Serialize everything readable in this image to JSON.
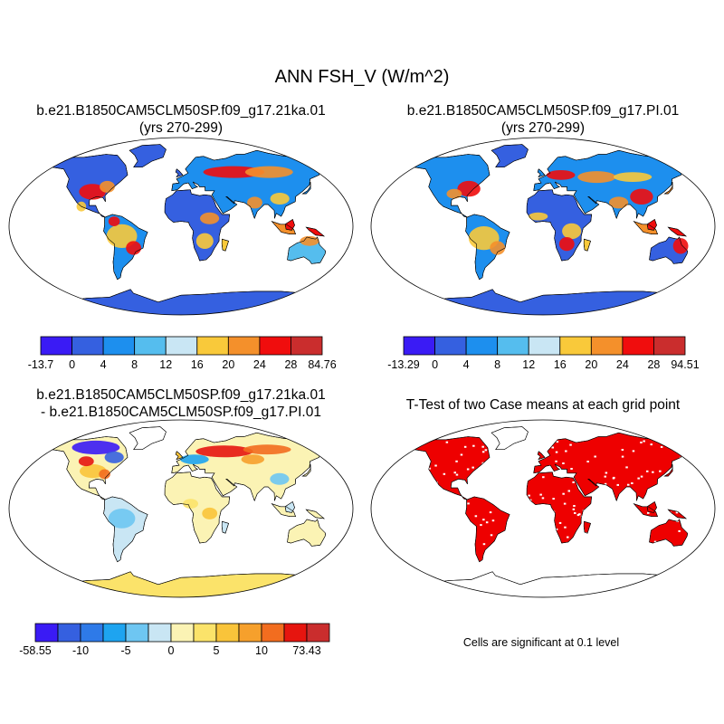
{
  "title": "ANN FSH_V (W/m^2)",
  "panels": [
    {
      "id": "case1",
      "title_line1": "b.e21.B1850CAM5CLM50SP.f09_g17.21ka.01",
      "title_line2": "(yrs 270-299)"
    },
    {
      "id": "case2",
      "title_line1": "b.e21.B1850CAM5CLM50SP.f09_g17.PI.01",
      "title_line2": "(yrs 270-299)"
    },
    {
      "id": "diff",
      "title_line1": "b.e21.B1850CAM5CLM50SP.f09_g17.21ka.01",
      "title_line2": "- b.e21.B1850CAM5CLM50SP.f09_g17.PI.01"
    },
    {
      "id": "ttest",
      "title_line1": "T-Test of two Case means at each grid point",
      "title_line2": ""
    }
  ],
  "note": "Cells are significant at 0.1 level",
  "colorbars": [
    {
      "id": "case1",
      "labels": [
        "-13.7",
        "0",
        "4",
        "8",
        "12",
        "16",
        "20",
        "24",
        "28",
        "84.76"
      ],
      "colors": [
        "#3a1bf5",
        "#3560e0",
        "#1d8fee",
        "#55bdee",
        "#c9e6f4",
        "#f9c93a",
        "#f4902b",
        "#f00d0d",
        "#ca2d2d"
      ]
    },
    {
      "id": "case2",
      "labels": [
        "-13.29",
        "0",
        "4",
        "8",
        "12",
        "16",
        "20",
        "24",
        "28",
        "94.51"
      ],
      "colors": [
        "#3a1bf5",
        "#3560e0",
        "#1d8fee",
        "#55bdee",
        "#c9e6f4",
        "#f9c93a",
        "#f4902b",
        "#f00d0d",
        "#ca2d2d"
      ]
    },
    {
      "id": "diff",
      "labels": [
        "-58.55",
        "-10",
        "-5",
        "0",
        "5",
        "10",
        "73.43"
      ],
      "label_positions": [
        0,
        2,
        4,
        6,
        8,
        10,
        12
      ],
      "colors": [
        "#3a1bf5",
        "#3560e0",
        "#2e7ae8",
        "#1ea4f0",
        "#6ec6f2",
        "#c9e6f4",
        "#fbf3b4",
        "#fbe36a",
        "#f9c43a",
        "#f6a02c",
        "#f26d1f",
        "#e6150f",
        "#ca2d2d"
      ]
    }
  ],
  "chart_data": [
    {
      "type": "heatmap",
      "panel": "case1",
      "title": "b.e21.B1850CAM5CLM50SP.f09_g17.21ka.01 (yrs 270-299)",
      "levels": [
        0,
        4,
        8,
        12,
        16,
        20,
        24,
        28
      ],
      "range": [
        -13.7,
        84.76
      ],
      "units": "W/m^2"
    },
    {
      "type": "heatmap",
      "panel": "case2",
      "title": "b.e21.B1850CAM5CLM50SP.f09_g17.PI.01 (yrs 270-299)",
      "levels": [
        0,
        4,
        8,
        12,
        16,
        20,
        24,
        28
      ],
      "range": [
        -13.29,
        94.51
      ],
      "units": "W/m^2"
    },
    {
      "type": "heatmap",
      "panel": "diff",
      "title": "b.e21.B1850CAM5CLM50SP.f09_g17.21ka.01 - b.e21.B1850CAM5CLM50SP.f09_g17.PI.01",
      "levels": [
        -10,
        -5,
        0,
        5,
        10
      ],
      "range": [
        -58.55,
        73.43
      ],
      "units": "W/m^2"
    },
    {
      "type": "heatmap",
      "panel": "ttest",
      "title": "T-Test of two Case means at each grid point",
      "significance_level": 0.1,
      "significant_color": "#ee0000"
    }
  ]
}
